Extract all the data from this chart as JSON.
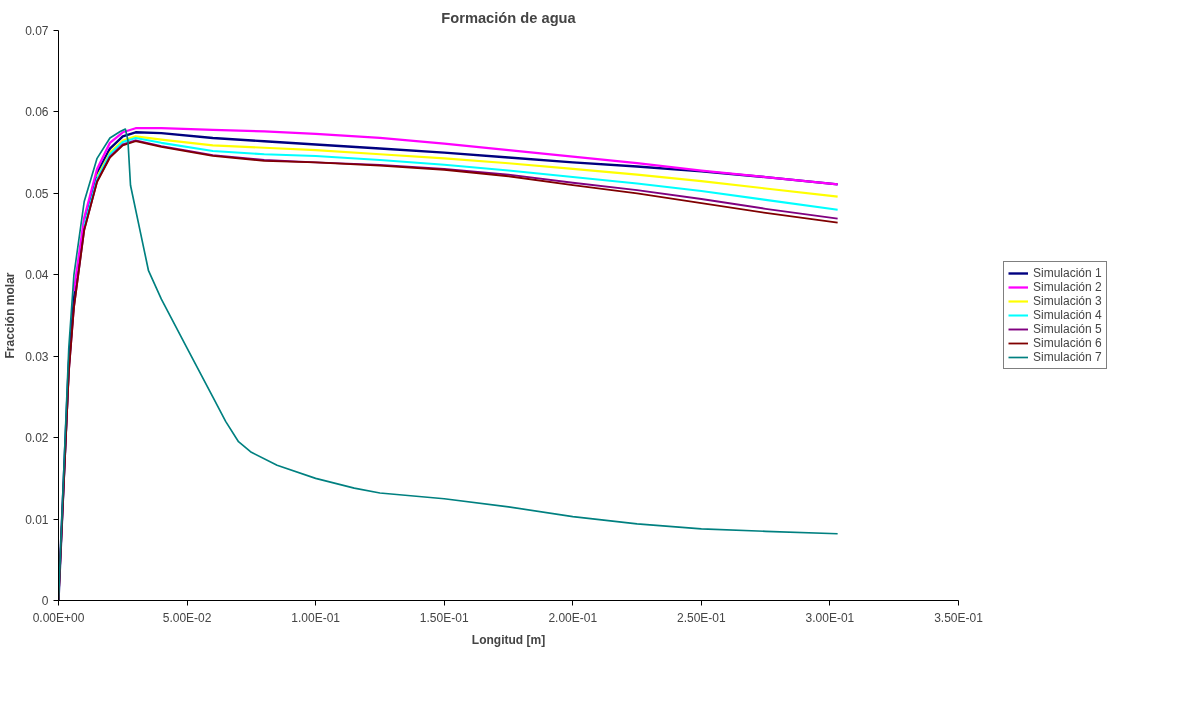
{
  "chart_data": {
    "type": "line",
    "title": "Formación de agua",
    "xlabel": "Longitud [m]",
    "ylabel": "Fracción molar",
    "xlim": [
      0,
      0.35
    ],
    "ylim": [
      0,
      0.07
    ],
    "xticks": [
      {
        "value": 0,
        "label": "0.00E+00"
      },
      {
        "value": 0.05,
        "label": "5.00E-02"
      },
      {
        "value": 0.1,
        "label": "1.00E-01"
      },
      {
        "value": 0.15,
        "label": "1.50E-01"
      },
      {
        "value": 0.2,
        "label": "2.00E-01"
      },
      {
        "value": 0.25,
        "label": "2.50E-01"
      },
      {
        "value": 0.3,
        "label": "3.00E-01"
      },
      {
        "value": 0.35,
        "label": "3.50E-01"
      }
    ],
    "yticks": [
      0,
      0.01,
      0.02,
      0.03,
      0.04,
      0.05,
      0.06,
      0.07
    ],
    "grid": false,
    "legend": "right",
    "marker": "none",
    "line_style": "solid",
    "series": [
      {
        "name": "Simulación 1",
        "color": "#000080",
        "x": [
          0,
          0.004,
          0.006,
          0.01,
          0.015,
          0.02,
          0.025,
          0.03,
          0.04,
          0.06,
          0.08,
          0.1,
          0.125,
          0.15,
          0.175,
          0.2,
          0.225,
          0.25,
          0.275,
          0.303
        ],
        "values": [
          0,
          0.029,
          0.037,
          0.0465,
          0.0525,
          0.0555,
          0.057,
          0.0575,
          0.0574,
          0.0568,
          0.0564,
          0.056,
          0.0555,
          0.055,
          0.0544,
          0.0538,
          0.0533,
          0.0527,
          0.052,
          0.0511
        ]
      },
      {
        "name": "Simulación 2",
        "color": "#ff00ff",
        "x": [
          0.006,
          0.01,
          0.015,
          0.02,
          0.025,
          0.03,
          0.04,
          0.06,
          0.08,
          0.1,
          0.125,
          0.15,
          0.175,
          0.2,
          0.225,
          0.25,
          0.275,
          0.303
        ],
        "values": [
          0.038,
          0.047,
          0.053,
          0.0562,
          0.0575,
          0.058,
          0.058,
          0.0578,
          0.0576,
          0.0573,
          0.0568,
          0.0561,
          0.0553,
          0.0545,
          0.0537,
          0.0528,
          0.052,
          0.0511
        ]
      },
      {
        "name": "Simulación 3",
        "color": "#ffff00",
        "x": [
          0.015,
          0.02,
          0.025,
          0.03,
          0.04,
          0.06,
          0.08,
          0.1,
          0.125,
          0.15,
          0.175,
          0.2,
          0.225,
          0.25,
          0.275,
          0.303
        ],
        "values": [
          0.052,
          0.055,
          0.0565,
          0.057,
          0.0566,
          0.0559,
          0.0556,
          0.0553,
          0.0548,
          0.0543,
          0.0537,
          0.053,
          0.0523,
          0.0515,
          0.0506,
          0.0496
        ]
      },
      {
        "name": "Simulación 4",
        "color": "#00ffff",
        "x": [
          0.01,
          0.015,
          0.02,
          0.025,
          0.03,
          0.04,
          0.06,
          0.08,
          0.1,
          0.125,
          0.15,
          0.175,
          0.2,
          0.225,
          0.25,
          0.275,
          0.303
        ],
        "values": [
          0.046,
          0.0518,
          0.0548,
          0.0563,
          0.0568,
          0.0562,
          0.0552,
          0.0548,
          0.0546,
          0.0541,
          0.0535,
          0.0528,
          0.052,
          0.0512,
          0.0503,
          0.0492,
          0.048
        ]
      },
      {
        "name": "Simulación 5",
        "color": "#800080",
        "x": [
          0,
          0.004,
          0.006,
          0.01,
          0.015,
          0.02,
          0.025,
          0.03,
          0.04,
          0.06,
          0.08,
          0.1,
          0.125,
          0.15,
          0.175,
          0.2,
          0.225,
          0.25,
          0.275,
          0.303
        ],
        "values": [
          0,
          0.028,
          0.036,
          0.0455,
          0.0515,
          0.0545,
          0.056,
          0.0565,
          0.0558,
          0.0547,
          0.0541,
          0.0538,
          0.0535,
          0.053,
          0.0523,
          0.0513,
          0.0504,
          0.0493,
          0.0481,
          0.0469
        ]
      },
      {
        "name": "Simulación 6",
        "color": "#800000",
        "x": [
          0,
          0.004,
          0.006,
          0.01,
          0.015,
          0.02,
          0.025,
          0.03,
          0.04,
          0.06,
          0.08,
          0.1,
          0.125,
          0.15,
          0.175,
          0.2,
          0.225,
          0.25,
          0.275,
          0.303
        ],
        "values": [
          0,
          0.028,
          0.036,
          0.0455,
          0.0514,
          0.0544,
          0.0559,
          0.0564,
          0.0557,
          0.0546,
          0.054,
          0.0538,
          0.0534,
          0.0529,
          0.0521,
          0.051,
          0.05,
          0.0488,
          0.0476,
          0.0464
        ]
      },
      {
        "name": "Simulación 7",
        "color": "#008080",
        "x": [
          0,
          0.004,
          0.006,
          0.01,
          0.015,
          0.02,
          0.024,
          0.026,
          0.027,
          0.028,
          0.032,
          0.035,
          0.04,
          0.05,
          0.06,
          0.065,
          0.07,
          0.075,
          0.085,
          0.1,
          0.115,
          0.125,
          0.15,
          0.175,
          0.2,
          0.225,
          0.25,
          0.275,
          0.303
        ],
        "values": [
          0,
          0.031,
          0.04,
          0.049,
          0.0543,
          0.0568,
          0.0576,
          0.0579,
          0.0565,
          0.051,
          0.045,
          0.0405,
          0.037,
          0.031,
          0.025,
          0.022,
          0.0195,
          0.0182,
          0.0166,
          0.015,
          0.0138,
          0.0132,
          0.0125,
          0.0115,
          0.0103,
          0.0094,
          0.0088,
          0.0085,
          0.0082
        ]
      }
    ]
  }
}
